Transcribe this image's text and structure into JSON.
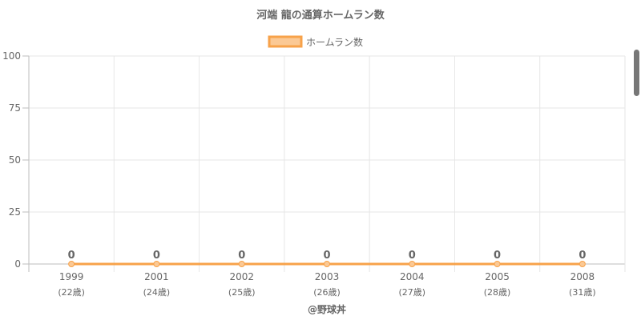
{
  "chart_data": {
    "type": "line",
    "title": "河端 龍の通算ホームラン数",
    "categories": [
      "1999",
      "2001",
      "2002",
      "2003",
      "2004",
      "2005",
      "2008"
    ],
    "category_sublabels": [
      "(22歳)",
      "(24歳)",
      "(25歳)",
      "(26歳)",
      "(27歳)",
      "(28歳)",
      "(31歳)"
    ],
    "series": [
      {
        "name": "ホームラン数",
        "values": [
          0,
          0,
          0,
          0,
          0,
          0,
          0
        ]
      }
    ],
    "ylim": [
      0,
      100
    ],
    "yticks": [
      0,
      25,
      50,
      75,
      100
    ],
    "xlabel": "@野球丼",
    "ylabel": "",
    "grid": true,
    "legend_position": "top-center",
    "data_labels": true
  },
  "colors": {
    "line": "#f7a24a",
    "legend_fill": "#fbc995",
    "point_fill": "#fbc995",
    "grid": "#e6e6e6",
    "axis": "#bdbdbd",
    "text": "#666666",
    "title": "#666666"
  }
}
